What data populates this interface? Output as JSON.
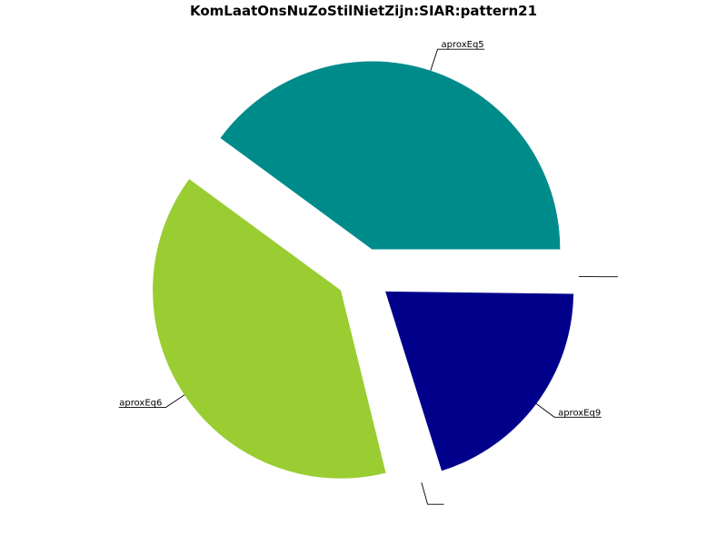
{
  "chart_data": {
    "type": "pie",
    "title": "KomLaatOnsNuZoStilNietZijn:SIAR:pattern21",
    "slices": [
      {
        "label": "aproxEq5",
        "value": 40,
        "color": "#008b8b"
      },
      {
        "label": "aproxEq6",
        "value": 39,
        "color": "#9acd32"
      },
      {
        "label": "",
        "value": 1,
        "color": "#ffffff"
      },
      {
        "label": "aproxEq9",
        "value": 20,
        "color": "#00008b"
      },
      {
        "label": "",
        "value": 0.2,
        "color": "#ffffff"
      }
    ],
    "start_angle_deg": 0,
    "direction": "counterclockwise",
    "exploded": true,
    "legend": "none"
  }
}
